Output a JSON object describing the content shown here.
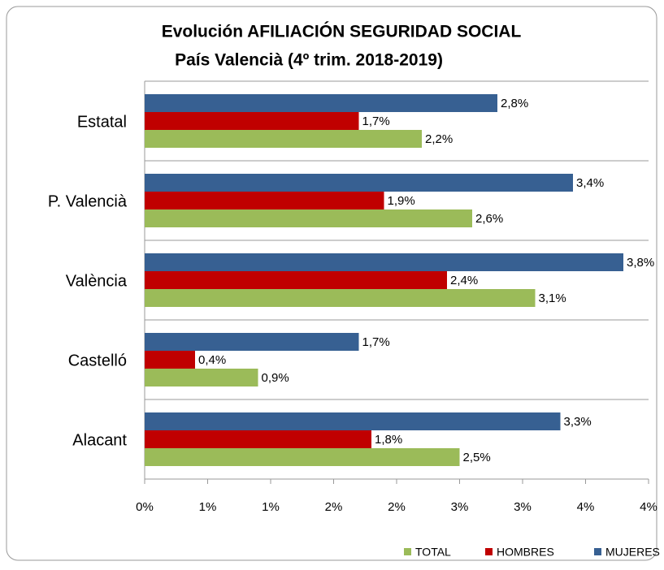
{
  "chart_data": {
    "type": "bar",
    "orientation": "horizontal",
    "title": "Evolución AFILIACIÓN SEGURIDAD SOCIAL",
    "subtitle": "País Valencià (4º trim. 2018-2019)",
    "categories": [
      "Estatal",
      "P. Valencià",
      "València",
      "Castelló",
      "Alacant"
    ],
    "series": [
      {
        "name": "TOTAL",
        "color": "#9bbb59",
        "values": [
          2.2,
          2.6,
          3.1,
          0.9,
          2.5
        ],
        "value_labels": [
          "2,2%",
          "2,6%",
          "3,1%",
          "0,9%",
          "2,5%"
        ]
      },
      {
        "name": "HOMBRES",
        "color": "#c00000",
        "values": [
          1.7,
          1.9,
          2.4,
          0.4,
          1.8
        ],
        "value_labels": [
          "1,7%",
          "1,9%",
          "2,4%",
          "0,4%",
          "1,8%"
        ]
      },
      {
        "name": "MUJERES",
        "color": "#376092",
        "values": [
          2.8,
          3.4,
          3.8,
          1.7,
          3.3
        ],
        "value_labels": [
          "2,8%",
          "3,4%",
          "3,8%",
          "1,7%",
          "3,3%"
        ]
      }
    ],
    "xlim": [
      0,
      4
    ],
    "xticks": [
      {
        "value": 0,
        "label": "0%"
      },
      {
        "value": 0.5,
        "label": "1%"
      },
      {
        "value": 1,
        "label": "1%"
      },
      {
        "value": 1.5,
        "label": "2%"
      },
      {
        "value": 2,
        "label": "2%"
      },
      {
        "value": 2.5,
        "label": "3%"
      },
      {
        "value": 3,
        "label": "3%"
      },
      {
        "value": 3.5,
        "label": "4%"
      },
      {
        "value": 4,
        "label": "4%"
      }
    ],
    "grid": true,
    "legend": "bottom"
  }
}
